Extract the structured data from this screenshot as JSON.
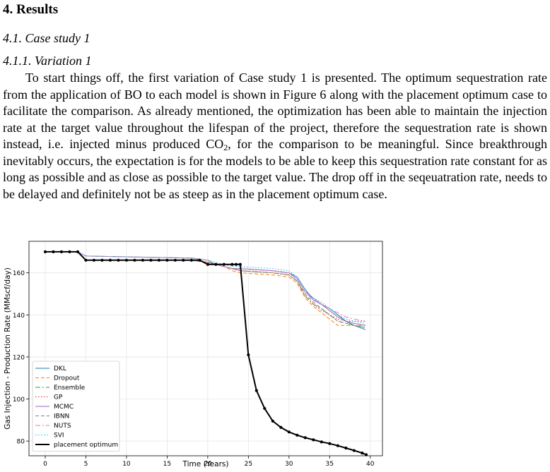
{
  "section": {
    "number": "4.",
    "title": "Results"
  },
  "subsection": {
    "number": "4.1.",
    "title": "Case study 1"
  },
  "subsubsection": {
    "number": "4.1.1.",
    "title": "Variation 1"
  },
  "paragraph": {
    "part1": "To start things off, the first variation of Case study 1 is presented. The optimum sequestration rate from the application of BO to each model is shown in Figure 6 along with the placement optimum case to facilitate the comparison. As already mentioned, the optimization has been able to maintain the injection rate at the target value throughout the lifespan of the project, therefore the sequestration rate is shown instead, i.e.  injected minus produced CO",
    "sub": "2",
    "part2": ", for the comparison to be meaningful. Since breakthrough inevitably occurs, the expectation is for the models to be able to keep this sequestration rate constant for as long as possible and as close as possible to the target value. The drop off in the seqeuatration rate, needs to be delayed and definitely not be as steep as in the placement optimum case."
  },
  "chart_data": {
    "type": "line",
    "xlabel": "Time (Years)",
    "ylabel": "Gas Injection - Production Rate (MMscf/day)",
    "xlim": [
      -2,
      41.5
    ],
    "ylim": [
      73,
      175
    ],
    "xticks": [
      0,
      5,
      10,
      15,
      20,
      25,
      30,
      35,
      40
    ],
    "yticks": [
      80,
      100,
      120,
      140,
      160
    ],
    "grid": true,
    "legend_position": "lower-left",
    "legend_entries": [
      "DKL",
      "Dropout",
      "Ensemble",
      "GP",
      "MCMC",
      "IBNN",
      "NUTS",
      "SVI",
      "placement optimum"
    ],
    "series": [
      {
        "name": "DKL",
        "color": "#1f77b4",
        "dash": "",
        "x": [
          0,
          4,
          5,
          18,
          20,
          21,
          22,
          23,
          24,
          26,
          28,
          29,
          30,
          31,
          32,
          33,
          34,
          35,
          36,
          37,
          38,
          39.4
        ],
        "y": [
          170,
          170,
          166,
          166,
          165,
          164,
          163,
          162,
          162,
          161.5,
          161,
          160.5,
          160,
          158,
          152,
          147,
          145,
          143,
          140,
          137,
          135,
          133
        ]
      },
      {
        "name": "Dropout",
        "color": "#ff7f0e",
        "dash": "5,3",
        "x": [
          0,
          4,
          5,
          18,
          20,
          21,
          22,
          23,
          24,
          26,
          28,
          29,
          30,
          31,
          32,
          33,
          34,
          35,
          36,
          37,
          38,
          39.4
        ],
        "y": [
          170,
          170,
          166,
          166,
          165,
          164,
          163,
          161,
          160,
          159.5,
          159,
          158.5,
          158,
          155,
          148,
          144,
          141,
          138,
          135,
          135,
          135,
          135
        ]
      },
      {
        "name": "Ensemble",
        "color": "#2ca02c",
        "dash": "7,3,2,3",
        "x": [
          0,
          4,
          5,
          18,
          20,
          21,
          22,
          23,
          24,
          26,
          28,
          29,
          30,
          31,
          32,
          33,
          34,
          35,
          36,
          37,
          38,
          39.4
        ],
        "y": [
          170,
          170,
          166,
          166,
          165,
          164,
          163,
          162,
          161,
          160.5,
          160,
          159.5,
          159,
          156,
          149,
          145,
          143,
          140,
          137,
          136,
          135,
          134
        ]
      },
      {
        "name": "GP",
        "color": "#d62728",
        "dash": "1.5,2.5",
        "x": [
          0,
          4,
          5,
          18,
          20,
          21,
          22,
          23,
          24,
          26,
          28,
          29,
          30,
          31,
          32,
          33,
          34,
          35,
          36,
          37,
          38,
          39.4
        ],
        "y": [
          170,
          170,
          166,
          166,
          165,
          164,
          163,
          162,
          161,
          160.5,
          160,
          159.5,
          159,
          156,
          149,
          145,
          142,
          140,
          138,
          137,
          137,
          137
        ]
      },
      {
        "name": "MCMC",
        "color": "#9467bd",
        "dash": "",
        "x": [
          0,
          4,
          5,
          18,
          20,
          21,
          22,
          23,
          24,
          26,
          28,
          29,
          30,
          31,
          32,
          33,
          34,
          35,
          36,
          37,
          38,
          39.4
        ],
        "y": [
          170,
          170,
          168,
          167,
          166,
          164,
          163,
          162,
          162,
          161.5,
          161,
          160.5,
          160,
          157,
          151,
          148,
          145,
          142,
          139,
          137,
          136,
          135
        ]
      },
      {
        "name": "IBNN",
        "color": "#7f7f7f",
        "dash": "5,3",
        "x": [
          0,
          4,
          5,
          18,
          20,
          21,
          22,
          23,
          24,
          26,
          28,
          29,
          30,
          31,
          32,
          33,
          34,
          35,
          36,
          37,
          38,
          39.4
        ],
        "y": [
          170,
          170,
          168,
          167,
          166,
          164,
          163,
          162,
          161,
          160.5,
          160,
          159.5,
          159,
          156,
          150,
          146,
          143,
          140,
          137,
          136,
          135,
          134
        ]
      },
      {
        "name": "NUTS",
        "color": "#e377c2",
        "dash": "7,3,2,3",
        "x": [
          0,
          4,
          5,
          18,
          20,
          21,
          22,
          23,
          24,
          26,
          28,
          29,
          30,
          31,
          32,
          33,
          34,
          35,
          36,
          37,
          38,
          39.4
        ],
        "y": [
          170,
          170,
          168,
          167,
          166,
          164,
          163,
          162,
          162,
          161.5,
          161,
          160.5,
          160,
          157,
          151,
          147,
          145,
          143,
          141,
          139,
          138,
          137
        ]
      },
      {
        "name": "SVI",
        "color": "#17becf",
        "dash": "1.5,2.5",
        "x": [
          0,
          4,
          5,
          18,
          20,
          21,
          22,
          23,
          24,
          26,
          28,
          29,
          30,
          31,
          32,
          33,
          34,
          35,
          36,
          37,
          38,
          39.4
        ],
        "y": [
          170,
          170,
          168,
          167,
          166,
          165,
          164,
          163,
          163,
          162.5,
          162,
          161.5,
          161,
          158,
          152,
          148,
          146,
          143,
          140,
          138,
          137,
          136
        ]
      },
      {
        "name": "placement optimum",
        "color": "#000000",
        "dash": "",
        "marker": true,
        "x": [
          0,
          1,
          2,
          3,
          4,
          5,
          6,
          7,
          8,
          9,
          10,
          11,
          12,
          13,
          14,
          15,
          16,
          17,
          18,
          19,
          20,
          21,
          22,
          23,
          23.5,
          24,
          25,
          26,
          27,
          28,
          29,
          30,
          31,
          32,
          33,
          34,
          35,
          36,
          37,
          38,
          39,
          39.5
        ],
        "y": [
          170,
          170,
          170,
          170,
          170,
          166,
          166,
          166,
          166,
          166,
          166,
          166,
          166,
          166,
          166,
          166,
          166,
          166,
          166,
          166,
          164,
          164,
          164,
          164,
          164,
          164,
          121,
          104,
          95.5,
          89.5,
          86.5,
          84.3,
          82.8,
          81.6,
          80.6,
          79.6,
          78.8,
          77.8,
          76.7,
          75.5,
          74.3,
          73.5
        ]
      }
    ]
  }
}
